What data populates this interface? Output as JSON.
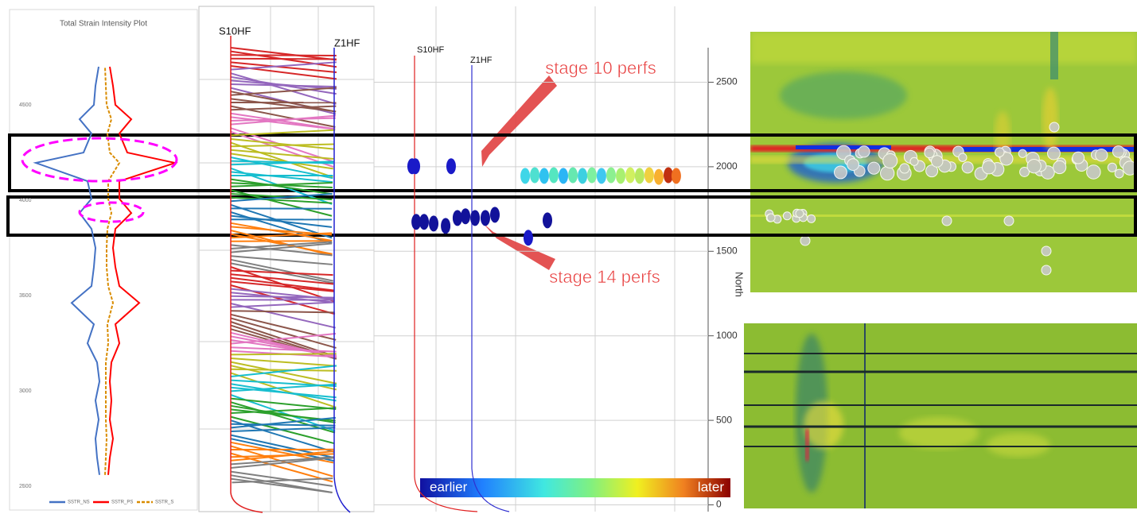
{
  "chart_data": [
    {
      "type": "line",
      "title": "Total Strain Intensity Plot",
      "depth": [
        2560,
        2650,
        2750,
        2850,
        2950,
        3050,
        3150,
        3250,
        3350,
        3462,
        3550,
        3650,
        3750,
        3850,
        3933,
        4008,
        4100,
        4196,
        4250,
        4350,
        4425,
        4500,
        4600,
        4700
      ],
      "series": [
        {
          "name": "SSTR_NS",
          "color": "#4472c4",
          "dash": false,
          "values": [
            -0.05,
            -0.08,
            -0.1,
            -0.06,
            -0.1,
            -0.05,
            -0.08,
            -0.2,
            -0.12,
            -0.4,
            -0.15,
            -0.12,
            -0.1,
            -0.15,
            -0.3,
            -0.15,
            -0.2,
            -0.85,
            -0.25,
            -0.15,
            -0.3,
            -0.12,
            -0.1,
            -0.06
          ]
        },
        {
          "name": "SSTR_PS",
          "color": "#ff0000",
          "dash": false,
          "values": [
            0.06,
            0.08,
            0.12,
            0.08,
            0.1,
            0.08,
            0.1,
            0.2,
            0.15,
            0.45,
            0.2,
            0.15,
            0.12,
            0.15,
            0.35,
            0.2,
            0.2,
            0.9,
            0.3,
            0.2,
            0.35,
            0.15,
            0.12,
            0.08
          ]
        },
        {
          "name": "SSTR_S",
          "color": "#d98c00",
          "dash": true,
          "values": [
            0.02,
            0.03,
            0.04,
            0.03,
            0.03,
            0.03,
            0.03,
            0.06,
            0.05,
            0.12,
            0.06,
            0.04,
            0.04,
            0.05,
            0.1,
            0.06,
            0.06,
            0.2,
            0.08,
            0.05,
            0.1,
            0.04,
            0.03,
            0.02
          ]
        }
      ],
      "xlim": [
        -1,
        1
      ],
      "ylim": [
        2380,
        5000
      ],
      "yticks": [
        2500,
        3000,
        3500,
        4000,
        4500
      ]
    },
    {
      "type": "wells",
      "labels": [
        "S10HF",
        "Z1HF"
      ]
    },
    {
      "type": "scatter",
      "ylabel": "North",
      "wells": [
        "S10HF",
        "Z1HF"
      ],
      "annotations": [
        "stage 10 perfs",
        "stage 14 perfs"
      ],
      "colorbar": [
        "earlier",
        "later"
      ],
      "xlim": [
        0,
        2000
      ],
      "ylim": [
        -40,
        2930
      ],
      "yticks": [
        0,
        500,
        1000,
        1500,
        2000,
        2500
      ],
      "x": [
        223,
        242,
        451,
        247,
        293,
        349,
        419,
        488,
        535,
        591,
        651,
        707,
        902,
        1014,
        884,
        940,
        995,
        1051,
        1107,
        1163,
        1219,
        1274,
        1330,
        1386,
        1442,
        1498,
        1553,
        1609,
        1665,
        1721,
        1767
      ],
      "y": [
        2003,
        2003,
        2003,
        1674,
        1674,
        1664,
        1650,
        1697,
        1707,
        1697,
        1697,
        1716,
        1580,
        1683,
        1946,
        1950,
        1946,
        1950,
        1946,
        1950,
        1946,
        1950,
        1946,
        1950,
        1946,
        1950,
        1946,
        1950,
        1940,
        1950,
        1946
      ],
      "colors": [
        "#1a1ac8",
        "#1a1ac8",
        "#1a1ac8",
        "#12129a",
        "#12129a",
        "#12129a",
        "#12129a",
        "#12129a",
        "#12129a",
        "#12129a",
        "#12129a",
        "#12129a",
        "#1a1ac8",
        "#12129a",
        "#3fd6e8",
        "#4ee0d0",
        "#2fc2f0",
        "#55e6c0",
        "#2bb5f5",
        "#66e8b0",
        "#3dd0e0",
        "#7ef0a0",
        "#40c8f0",
        "#8cf090",
        "#a8f070",
        "#d0f060",
        "#b8e860",
        "#f0d040",
        "#f8b030",
        "#c03010",
        "#f07020"
      ]
    }
  ]
}
